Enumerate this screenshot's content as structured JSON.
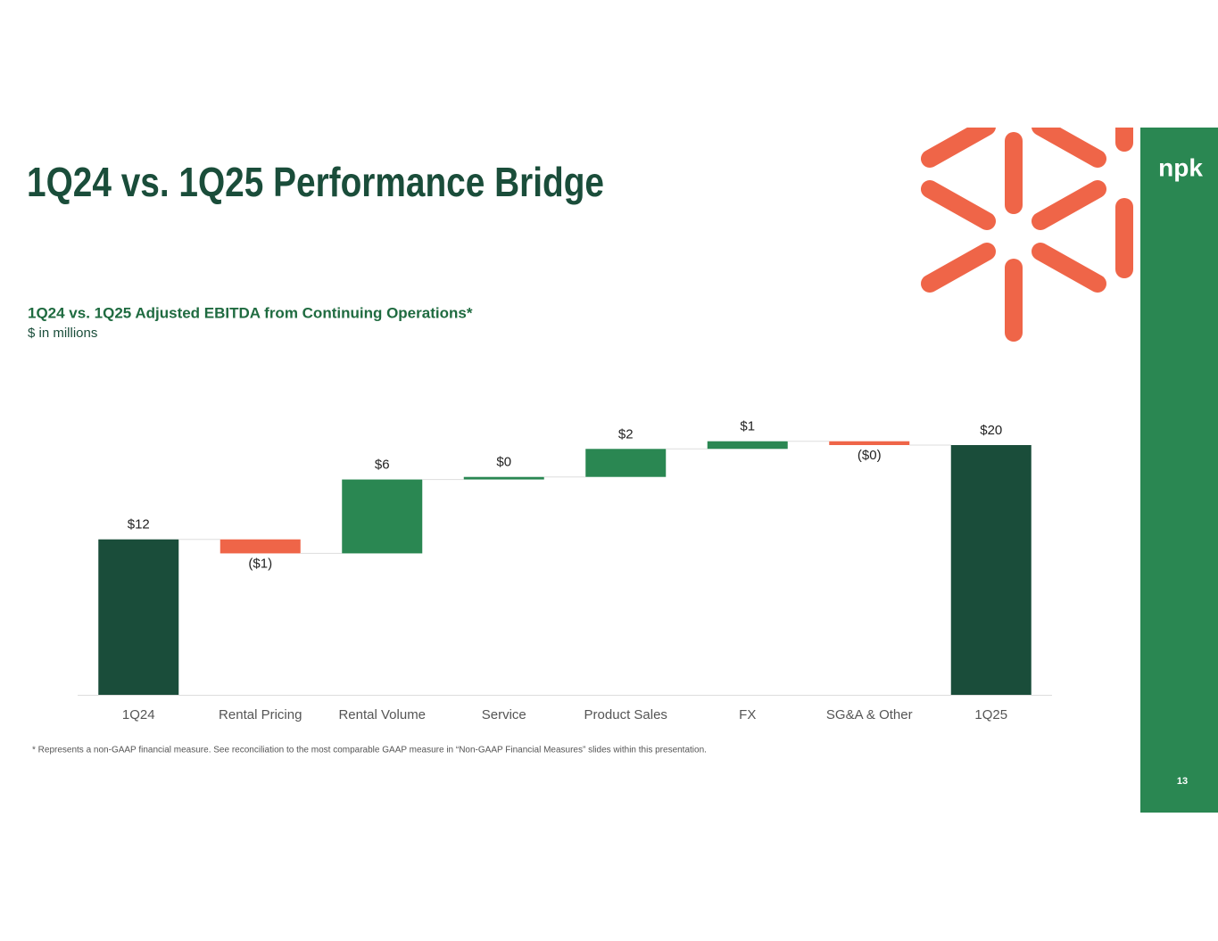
{
  "slide": {
    "title": "1Q24 vs. 1Q25 Performance Bridge",
    "logo": "npk",
    "page_number": "13",
    "footnote": "* Represents a non-GAAP financial measure. See reconciliation to the most comparable GAAP measure in “Non-GAAP Financial Measures” slides within this presentation."
  },
  "chart_data": {
    "type": "waterfall",
    "title": "1Q24 vs. 1Q25 Adjusted EBITDA from Continuing Operations*",
    "subtitle": "$ in millions",
    "categories": [
      "1Q24",
      "Rental Pricing",
      "Rental Volume",
      "Service",
      "Product Sales",
      "FX",
      "SG&A & Other",
      "1Q25"
    ],
    "values": [
      12.2,
      -1.1,
      5.8,
      0.2,
      2.2,
      0.6,
      -0.3,
      19.6
    ],
    "value_labels": [
      "$12",
      "($1)",
      "$6",
      "$0",
      "$2",
      "$1",
      "($0)",
      "$20"
    ],
    "measure": [
      "absolute",
      "relative",
      "relative",
      "relative",
      "relative",
      "relative",
      "relative",
      "total"
    ],
    "colors": [
      "#1a4d3a",
      "#ef6548",
      "#2a8752",
      "#2a8752",
      "#2a8752",
      "#2a8752",
      "#ef6548",
      "#1a4d3a"
    ],
    "ylim": [
      0,
      21
    ]
  }
}
